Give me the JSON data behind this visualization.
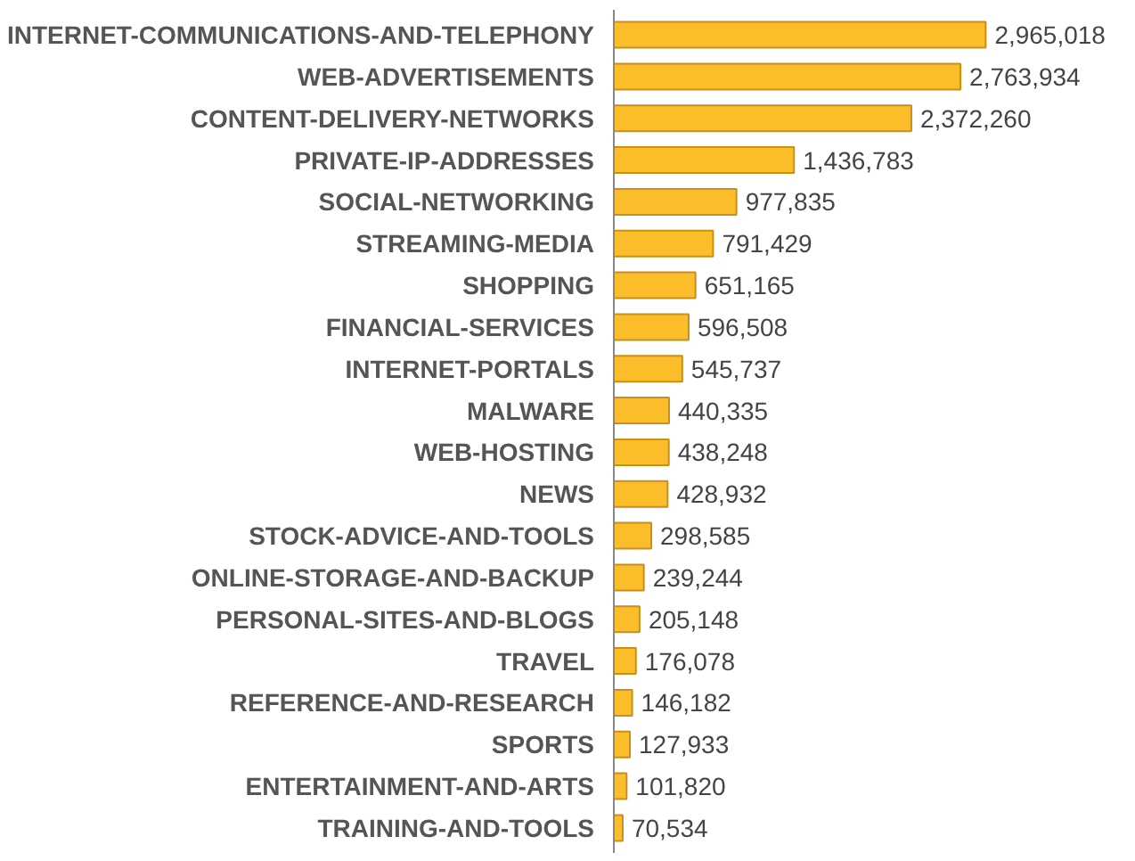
{
  "chart_data": {
    "type": "bar",
    "orientation": "horizontal",
    "value_labels": [
      "2,965,018",
      "2,763,934",
      "2,372,260",
      "1,436,783",
      "977,835",
      "791,429",
      "651,165",
      "596,508",
      "545,737",
      "440,335",
      "438,248",
      "428,932",
      "298,585",
      "239,244",
      "205,148",
      "176,078",
      "146,182",
      "127,933",
      "101,820",
      "70,534"
    ],
    "color": "#fbbd2a",
    "categories": [
      "INTERNET-COMMUNICATIONS-AND-TELEPHONY",
      "WEB-ADVERTISEMENTS",
      "CONTENT-DELIVERY-NETWORKS",
      "PRIVATE-IP-ADDRESSES",
      "SOCIAL-NETWORKING",
      "STREAMING-MEDIA",
      "SHOPPING",
      "FINANCIAL-SERVICES",
      "INTERNET-PORTALS",
      "MALWARE",
      "WEB-HOSTING",
      "NEWS",
      "STOCK-ADVICE-AND-TOOLS",
      "ONLINE-STORAGE-AND-BACKUP",
      "PERSONAL-SITES-AND-BLOGS",
      "TRAVEL",
      "REFERENCE-AND-RESEARCH",
      "SPORTS",
      "ENTERTAINMENT-AND-ARTS",
      "TRAINING-AND-TOOLS"
    ],
    "values": [
      2965018,
      2763934,
      2372260,
      1436783,
      977835,
      791429,
      651165,
      596508,
      545737,
      440335,
      438248,
      428932,
      298585,
      239244,
      205148,
      176078,
      146182,
      127933,
      101820,
      70534
    ]
  }
}
